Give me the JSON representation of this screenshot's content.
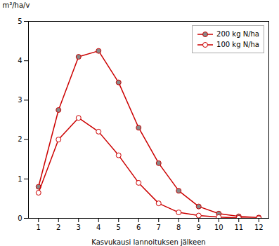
{
  "chart_data": {
    "type": "line",
    "x": [
      1,
      2,
      3,
      4,
      5,
      6,
      7,
      8,
      9,
      10,
      11,
      12
    ],
    "series": [
      {
        "name": "200 kg N/ha",
        "color": "#cc0000",
        "marker": "filled",
        "values": [
          0.8,
          2.75,
          4.1,
          4.25,
          3.45,
          2.3,
          1.4,
          0.7,
          0.3,
          0.12,
          0.05,
          0.02
        ]
      },
      {
        "name": "100 kg N/ha",
        "color": "#cc0000",
        "marker": "open",
        "values": [
          0.65,
          2.0,
          2.55,
          2.2,
          1.6,
          0.9,
          0.38,
          0.15,
          0.07,
          0.03,
          0.01,
          0.0
        ]
      }
    ],
    "xlabel": "Kasvukausi lannoituksen jälkeen",
    "ylabel": "m³/ha/v",
    "xlim": [
      0.5,
      12.5
    ],
    "ylim": [
      0,
      5
    ],
    "xticks": [
      1,
      2,
      3,
      4,
      5,
      6,
      7,
      8,
      9,
      10,
      11,
      12
    ],
    "yticks": [
      0,
      1,
      2,
      3,
      4,
      5
    ],
    "grid": false,
    "legend": "upper right"
  }
}
